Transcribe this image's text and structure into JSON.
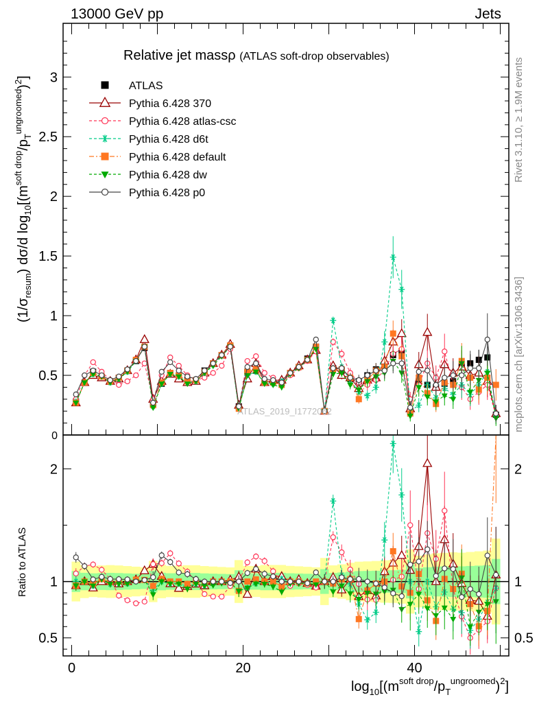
{
  "header": {
    "left": "13000 GeV pp",
    "right": "Jets"
  },
  "side_labels": {
    "rivet": "Rivet 3.1.10, ≥ 1.9M events",
    "mcplots": "mcplots.cern.ch [arXiv:1306.3436]"
  },
  "watermark": "ATLAS_2019_I1772062",
  "chart_data": [
    {
      "type": "line",
      "title": "Relative jet massρ",
      "subtitle": "(ATLAS soft-drop observables)",
      "ylabel": "(1/σresum) dσ/d log10[(m^soft drop/pT^ungroomed)^2]",
      "xlabel": "log10[(m^soft drop/pT^ungroomed)^2]",
      "xlim": [
        -1,
        51
      ],
      "ylim": [
        0,
        3.45
      ],
      "yticks": [
        "0.5",
        "1",
        "1.5",
        "2",
        "2.5",
        "3"
      ],
      "xticks": [
        "0",
        "20",
        "40"
      ],
      "grid": false,
      "legend": "top-left",
      "x": [
        0.5,
        1.5,
        2.5,
        3.5,
        4.5,
        5.5,
        6.5,
        7.5,
        8.5,
        9.5,
        10.5,
        11.5,
        12.5,
        13.5,
        14.5,
        15.5,
        16.5,
        17.5,
        18.5,
        19.5,
        20.5,
        21.5,
        22.5,
        23.5,
        24.5,
        25.5,
        26.5,
        27.5,
        28.5,
        29.5,
        30.5,
        31.5,
        32.5,
        33.5,
        34.5,
        35.5,
        36.5,
        37.5,
        38.5,
        39.5,
        40.5,
        41.5,
        42.5,
        43.5,
        44.5,
        45.5,
        46.5,
        47.5,
        48.5,
        49.5
      ],
      "series": [
        {
          "name": "ATLAS",
          "color": "#000000",
          "marker": "square",
          "values": [
            0.28,
            0.44,
            0.53,
            0.48,
            0.45,
            0.48,
            0.54,
            0.62,
            0.73,
            0.26,
            0.43,
            0.52,
            0.5,
            0.46,
            0.46,
            0.54,
            0.6,
            0.67,
            0.75,
            0.24,
            0.53,
            0.54,
            0.44,
            0.44,
            0.44,
            0.52,
            0.57,
            0.64,
            0.74,
            0.2,
            0.56,
            0.54,
            0.47,
            0.45,
            0.5,
            0.55,
            0.57,
            0.67,
            0.69,
            0.2,
            0.45,
            0.42,
            0.4,
            0.43,
            0.45,
            0.58,
            0.6,
            0.63,
            0.65,
            0.17
          ]
        },
        {
          "name": "Pythia 6.428 370",
          "color": "#990000",
          "marker": "triangle",
          "values": [
            0.27,
            0.44,
            0.5,
            0.48,
            0.45,
            0.47,
            0.54,
            0.63,
            0.8,
            0.3,
            0.45,
            0.51,
            0.47,
            0.44,
            0.45,
            0.52,
            0.6,
            0.67,
            0.76,
            0.25,
            0.47,
            0.6,
            0.44,
            0.46,
            0.46,
            0.52,
            0.58,
            0.63,
            0.71,
            0.2,
            0.58,
            0.5,
            0.48,
            0.39,
            0.46,
            0.48,
            0.62,
            0.78,
            0.85,
            0.22,
            0.59,
            0.86,
            0.4,
            0.59,
            0.52,
            0.57,
            0.5,
            0.52,
            0.45,
            0.18
          ]
        },
        {
          "name": "Pythia 6.428 atlas-csc",
          "color": "#ff3355",
          "marker": "circle",
          "values": [
            0.3,
            0.5,
            0.61,
            0.53,
            0.46,
            0.42,
            0.45,
            0.5,
            0.6,
            0.3,
            0.5,
            0.65,
            0.58,
            0.5,
            0.46,
            0.48,
            0.52,
            0.58,
            0.72,
            0.24,
            0.62,
            0.66,
            0.52,
            0.48,
            0.44,
            0.5,
            0.56,
            0.62,
            0.7,
            0.2,
            0.78,
            0.68,
            0.52,
            0.44,
            0.42,
            0.46,
            0.55,
            0.68,
            0.72,
            0.3,
            0.42,
            0.6,
            0.48,
            0.7,
            0.42,
            0.4,
            0.3,
            0.36,
            0.42,
            0.16
          ]
        },
        {
          "name": "Pythia 6.428 d6t",
          "color": "#00cc88",
          "marker": "star",
          "values": [
            0.28,
            0.44,
            0.51,
            0.49,
            0.44,
            0.47,
            0.53,
            0.62,
            0.74,
            0.24,
            0.43,
            0.51,
            0.49,
            0.44,
            0.45,
            0.52,
            0.59,
            0.67,
            0.75,
            0.22,
            0.5,
            0.53,
            0.44,
            0.43,
            0.45,
            0.52,
            0.57,
            0.63,
            0.74,
            0.2,
            0.96,
            0.57,
            0.46,
            0.36,
            0.33,
            0.4,
            0.78,
            1.49,
            1.22,
            0.2,
            0.25,
            0.42,
            0.31,
            0.39,
            0.34,
            0.42,
            0.34,
            0.42,
            0.53,
            0.16
          ]
        },
        {
          "name": "Pythia 6.428 default",
          "color": "#ff7722",
          "marker": "square",
          "values": [
            0.27,
            0.44,
            0.52,
            0.49,
            0.45,
            0.48,
            0.54,
            0.63,
            0.74,
            0.25,
            0.44,
            0.52,
            0.5,
            0.45,
            0.46,
            0.53,
            0.6,
            0.67,
            0.75,
            0.22,
            0.53,
            0.55,
            0.44,
            0.44,
            0.42,
            0.52,
            0.57,
            0.63,
            0.74,
            0.2,
            0.55,
            0.55,
            0.48,
            0.3,
            0.46,
            0.54,
            0.57,
            0.85,
            0.66,
            0.18,
            0.48,
            0.35,
            0.26,
            0.44,
            0.42,
            0.62,
            0.48,
            0.38,
            0.48,
            0.42
          ]
        },
        {
          "name": "Pythia 6.428 dw",
          "color": "#00aa00",
          "marker": "triangle-down",
          "values": [
            0.27,
            0.44,
            0.51,
            0.49,
            0.44,
            0.47,
            0.53,
            0.62,
            0.74,
            0.23,
            0.43,
            0.51,
            0.49,
            0.43,
            0.45,
            0.52,
            0.58,
            0.66,
            0.74,
            0.22,
            0.5,
            0.53,
            0.43,
            0.42,
            0.4,
            0.51,
            0.56,
            0.63,
            0.72,
            0.2,
            0.51,
            0.52,
            0.42,
            0.38,
            0.45,
            0.49,
            0.52,
            0.62,
            0.52,
            0.16,
            0.4,
            0.32,
            0.28,
            0.33,
            0.3,
            0.6,
            0.36,
            0.46,
            0.52,
            0.14
          ]
        },
        {
          "name": "Pythia 6.428 p0",
          "color": "#444444",
          "marker": "circle",
          "values": [
            0.34,
            0.5,
            0.54,
            0.5,
            0.46,
            0.49,
            0.55,
            0.62,
            0.74,
            0.27,
            0.53,
            0.61,
            0.54,
            0.49,
            0.47,
            0.54,
            0.6,
            0.67,
            0.74,
            0.24,
            0.57,
            0.6,
            0.47,
            0.46,
            0.44,
            0.52,
            0.57,
            0.63,
            0.8,
            0.2,
            0.56,
            0.56,
            0.48,
            0.46,
            0.5,
            0.54,
            0.54,
            0.6,
            0.6,
            0.23,
            0.53,
            0.54,
            0.42,
            0.48,
            0.5,
            0.5,
            0.56,
            0.56,
            0.8,
            0.18
          ]
        }
      ]
    },
    {
      "type": "line",
      "ylabel": "Ratio to ATLAS",
      "ylim": [
        0.34,
        2.3
      ],
      "yticks": [
        "0.5",
        "1",
        "2"
      ],
      "reference": 1
    }
  ]
}
